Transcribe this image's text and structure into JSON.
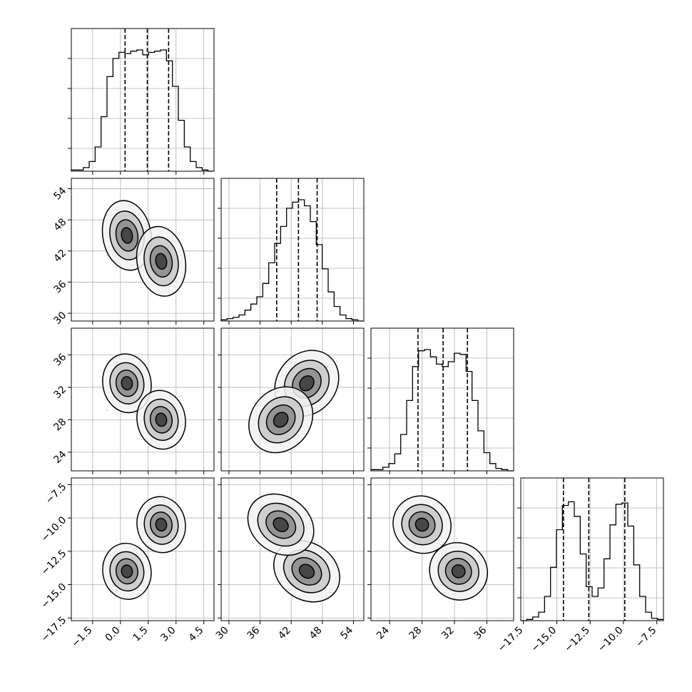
{
  "chart_data": {
    "type": "corner",
    "grid": true,
    "parameters": [
      {
        "ticks": [
          -1.5,
          0.0,
          1.5,
          3.0,
          4.5
        ],
        "tick_labels": [
          "−1.5",
          "0.0",
          "1.5",
          "3.0",
          "4.5"
        ],
        "range": [
          -2.65,
          5.05
        ],
        "quantiles": [
          0.25,
          1.45,
          2.6
        ],
        "modes": [
          [
            0.35,
            45.0,
            32.5,
            -14.0
          ],
          [
            2.2,
            40.0,
            28.0,
            -10.5
          ]
        ],
        "spread": [
          0.5,
          2.6,
          1.4,
          0.45
        ]
      },
      {
        "ticks": [
          30,
          36,
          42,
          48,
          54
        ],
        "tick_labels": [
          "30",
          "36",
          "42",
          "48",
          "54"
        ],
        "range": [
          28.5,
          56.0
        ],
        "quantiles": [
          39.2,
          43.4,
          47.0
        ]
      },
      {
        "ticks": [
          24,
          28,
          32,
          36
        ],
        "tick_labels": [
          "24",
          "28",
          "32",
          "36"
        ],
        "range": [
          21.7,
          39.3
        ],
        "quantiles": [
          27.5,
          30.6,
          33.6
        ]
      },
      {
        "ticks": [
          -17.5,
          -15.0,
          -12.5,
          -10.0,
          -7.5
        ],
        "tick_labels": [
          "−17.5",
          "−15.0",
          "−12.5",
          "−10.0",
          "−7.5"
        ],
        "range": [
          -17.7,
          -7.0
        ],
        "quantiles": [
          -14.5,
          -12.6,
          -9.9
        ]
      }
    ],
    "histograms": [
      [
        0.01,
        0.01,
        0.03,
        0.08,
        0.2,
        0.45,
        0.78,
        0.93,
        0.98,
        0.97,
        0.99,
        1.0,
        0.96,
        0.98,
        0.99,
        1.0,
        0.91,
        0.7,
        0.42,
        0.2,
        0.08,
        0.03,
        0.01,
        0.0
      ],
      [
        0.01,
        0.02,
        0.03,
        0.05,
        0.09,
        0.14,
        0.2,
        0.31,
        0.48,
        0.64,
        0.78,
        0.93,
        0.98,
        1.0,
        0.95,
        0.82,
        0.63,
        0.43,
        0.24,
        0.12,
        0.05,
        0.02,
        0.01,
        0.0
      ],
      [
        0.01,
        0.01,
        0.03,
        0.06,
        0.14,
        0.3,
        0.58,
        0.86,
        0.99,
        1.0,
        0.94,
        0.88,
        0.86,
        0.9,
        0.97,
        0.96,
        0.82,
        0.58,
        0.33,
        0.15,
        0.06,
        0.02,
        0.01,
        0.0
      ],
      [
        0.0,
        0.01,
        0.03,
        0.07,
        0.2,
        0.44,
        0.75,
        0.95,
        0.98,
        0.86,
        0.55,
        0.28,
        0.2,
        0.27,
        0.51,
        0.79,
        0.96,
        0.97,
        0.78,
        0.46,
        0.2,
        0.07,
        0.02,
        0.01
      ]
    ]
  }
}
